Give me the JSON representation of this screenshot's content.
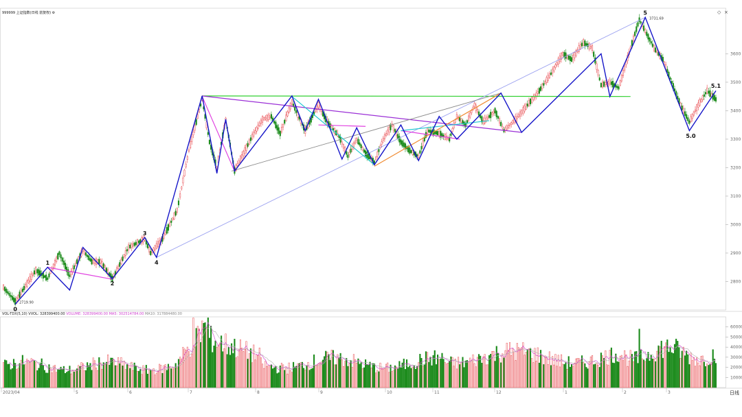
{
  "header": {
    "security": "999999 上证指数(日线 前复权)",
    "settings_icon": "gear-icon"
  },
  "window_controls": {
    "restore": "◇",
    "close": "×"
  },
  "volume_header": {
    "indicator": "VOL-TDX(5,10)",
    "vvol": "VVOL: 328399400.00",
    "volume": "VOLUME: 328399400.00",
    "ma5": "MA5: 302514784.00",
    "ma10": "MA10: 317884480.00"
  },
  "colors": {
    "up": "#e8484d",
    "down": "#1a8a1a",
    "wave": "#1515c8",
    "magenta": "#e040e0",
    "purple": "#9a2ed6",
    "lightblue": "#9aa0f0",
    "cyan": "#20c8d0",
    "gray": "#8a8a8a",
    "orange": "#f08a30",
    "green": "#30d030",
    "label": "#111111",
    "axis": "#666666"
  },
  "chart_data": {
    "type": "candlestick",
    "price_axis": {
      "ylim": [
        2700,
        3760
      ],
      "ticks": [
        2800,
        2900,
        3000,
        3100,
        3200,
        3300,
        3400,
        3500,
        3600
      ]
    },
    "volume_axis": {
      "ylim": [
        0,
        70000
      ],
      "ticks": [
        10000,
        20000,
        30000,
        40000,
        50000,
        60000
      ]
    },
    "x_axis": {
      "labels": [
        "2023/04",
        "5",
        "6",
        "7",
        "8",
        "9",
        "10",
        "11",
        "12",
        "1",
        "2",
        "3"
      ]
    },
    "price_annotations": {
      "low": "2719.90",
      "high": "3731.69"
    },
    "wave_labels": [
      "0",
      "1",
      "2",
      "3",
      "4",
      "5",
      "5.0",
      "5.1"
    ],
    "bottom_right_label": "日线"
  }
}
